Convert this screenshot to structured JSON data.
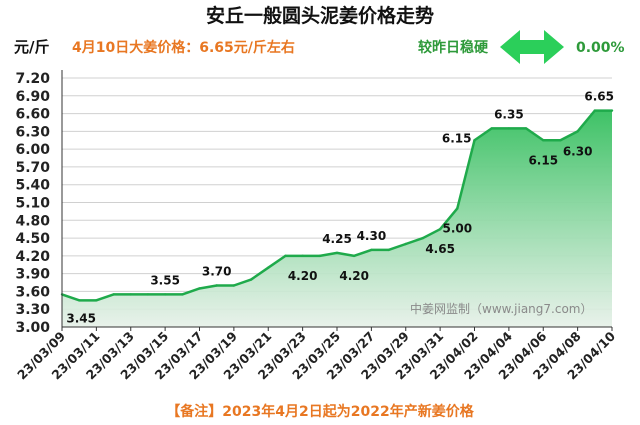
{
  "chart_data": {
    "type": "area",
    "title": "安丘一般圆头泥姜价格走势",
    "unit_label": "元/斤",
    "headline": "4月10日大姜价格：6.65元/斤左右",
    "change_label": "较昨日稳硬",
    "change_value": "0.00%",
    "watermark": "中姜网监制（www.jiang7.com）",
    "footnote": "【备注】2023年4月2日起为2022年产新姜价格",
    "y_ticks": [
      "3.00",
      "3.30",
      "3.60",
      "3.90",
      "4.20",
      "4.50",
      "4.80",
      "5.10",
      "5.40",
      "5.70",
      "6.00",
      "6.30",
      "6.60",
      "6.90",
      "7.20"
    ],
    "ylim": [
      3.0,
      7.2
    ],
    "x_ticks": [
      "23/03/09",
      "23/03/11",
      "23/03/13",
      "23/03/15",
      "23/03/17",
      "23/03/19",
      "23/03/21",
      "23/03/23",
      "23/03/25",
      "23/03/27",
      "23/03/29",
      "23/03/31",
      "23/04/02",
      "23/04/04",
      "23/04/06",
      "23/04/08",
      "23/04/10"
    ],
    "x": [
      "23/03/09",
      "23/03/10",
      "23/03/11",
      "23/03/12",
      "23/03/13",
      "23/03/14",
      "23/03/15",
      "23/03/16",
      "23/03/17",
      "23/03/18",
      "23/03/19",
      "23/03/20",
      "23/03/21",
      "23/03/22",
      "23/03/23",
      "23/03/24",
      "23/03/25",
      "23/03/26",
      "23/03/27",
      "23/03/28",
      "23/03/29",
      "23/03/30",
      "23/03/31",
      "23/04/01",
      "23/04/02",
      "23/04/03",
      "23/04/04",
      "23/04/05",
      "23/04/06",
      "23/04/07",
      "23/04/08",
      "23/04/09",
      "23/04/10"
    ],
    "values": [
      3.55,
      3.45,
      3.45,
      3.55,
      3.55,
      3.55,
      3.55,
      3.55,
      3.65,
      3.7,
      3.7,
      3.8,
      4.0,
      4.2,
      4.2,
      4.2,
      4.25,
      4.2,
      4.3,
      4.3,
      4.4,
      4.5,
      4.65,
      5.0,
      6.15,
      6.35,
      6.35,
      6.35,
      6.15,
      6.15,
      6.3,
      6.65,
      6.65
    ],
    "data_labels": [
      {
        "index": 1,
        "text": "3.45"
      },
      {
        "index": 6,
        "text": "3.55"
      },
      {
        "index": 9,
        "text": "3.70"
      },
      {
        "index": 14,
        "text": "4.20"
      },
      {
        "index": 16,
        "text": "4.25"
      },
      {
        "index": 17,
        "text": "4.20"
      },
      {
        "index": 18,
        "text": "4.30"
      },
      {
        "index": 22,
        "text": "4.65"
      },
      {
        "index": 23,
        "text": "5.00"
      },
      {
        "index": 24,
        "text": "6.15"
      },
      {
        "index": 26,
        "text": "6.35"
      },
      {
        "index": 28,
        "text": "6.15"
      },
      {
        "index": 30,
        "text": "6.30"
      },
      {
        "index": 32,
        "text": "6.65"
      }
    ],
    "colors": {
      "line": "#1faa4b",
      "fill_top": "#3ec266",
      "fill_bottom": "#e6f0e8",
      "accent": "#e87722",
      "arrow": "#2bcf5a"
    }
  }
}
